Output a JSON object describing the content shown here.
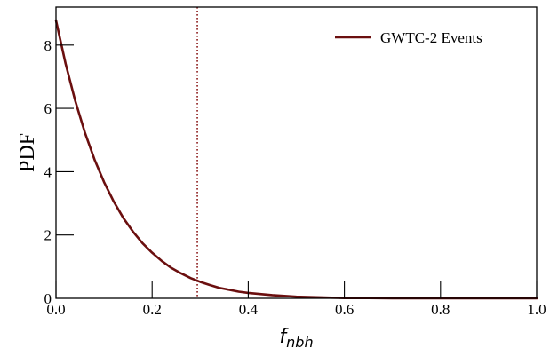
{
  "chart_data": {
    "type": "line",
    "title": "",
    "xlabel": "f",
    "xlabel_subscript": "nbh",
    "ylabel": "PDF",
    "xlim": [
      0.0,
      1.0
    ],
    "ylim": [
      0,
      9.2
    ],
    "x_ticks": [
      0.0,
      0.2,
      0.4,
      0.6,
      0.8,
      1.0
    ],
    "x_tick_labels": [
      "0.0",
      "0.2",
      "0.4",
      "0.6",
      "0.8",
      "1.0"
    ],
    "y_ticks": [
      0,
      2,
      4,
      6,
      8
    ],
    "y_tick_labels": [
      "0",
      "2",
      "4",
      "6",
      "8"
    ],
    "grid": false,
    "legend_position": "top-right",
    "series": [
      {
        "name": "GWTC-2 Events",
        "color": "#6b0f0f",
        "x": [
          0.0,
          0.02,
          0.04,
          0.06,
          0.08,
          0.1,
          0.12,
          0.14,
          0.16,
          0.18,
          0.2,
          0.22,
          0.24,
          0.26,
          0.28,
          0.3,
          0.32,
          0.34,
          0.36,
          0.38,
          0.4,
          0.45,
          0.5,
          0.55,
          0.6,
          0.65,
          0.7,
          0.8,
          0.9,
          1.0
        ],
        "y": [
          8.78,
          7.41,
          6.24,
          5.24,
          4.39,
          3.67,
          3.06,
          2.54,
          2.11,
          1.74,
          1.44,
          1.18,
          0.96,
          0.79,
          0.64,
          0.52,
          0.42,
          0.33,
          0.27,
          0.21,
          0.17,
          0.1,
          0.05,
          0.03,
          0.01,
          0.01,
          0.0,
          0.0,
          0.0,
          0.0
        ]
      }
    ],
    "annotations": [
      {
        "type": "vertical_line",
        "x": 0.294,
        "style": "dotted",
        "color": "#8b1a1a"
      }
    ]
  }
}
